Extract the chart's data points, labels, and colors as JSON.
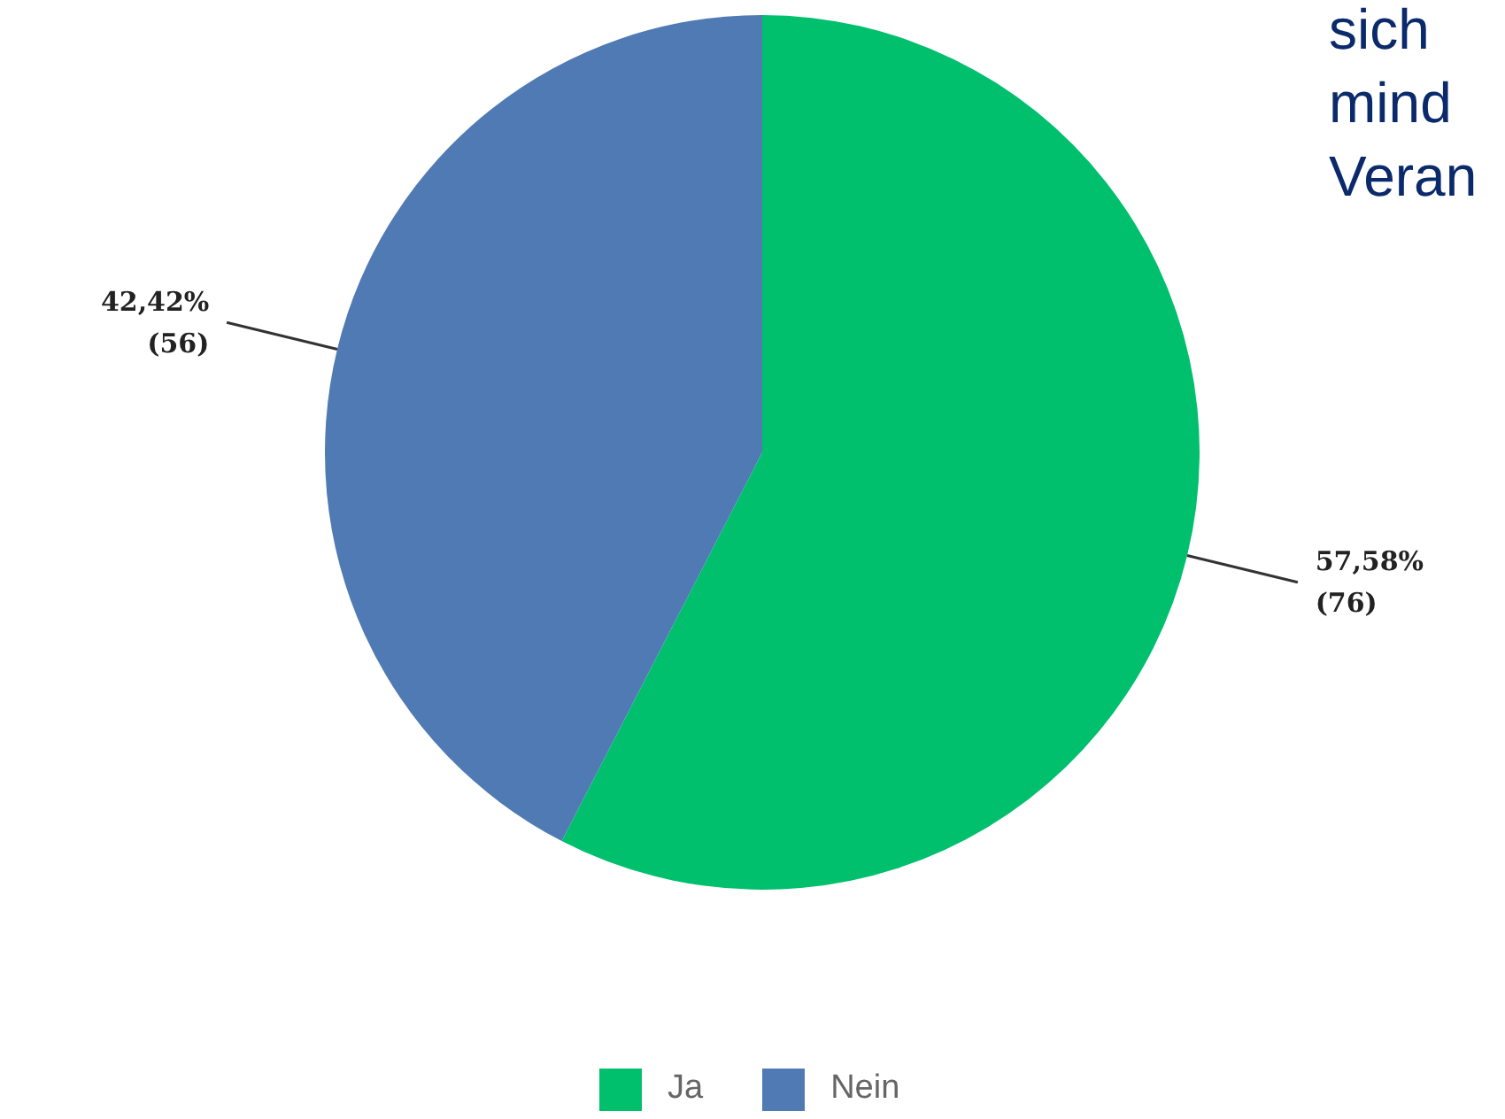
{
  "chart_data": {
    "type": "pie",
    "categories": [
      "Ja",
      "Nein"
    ],
    "values": [
      57.58,
      42.42
    ],
    "colors": [
      "#00c06e",
      "#4f7ab3"
    ],
    "value_labels": [
      "57,58%\n(76)",
      "42,42%\n(56)"
    ],
    "legend": "bottom",
    "annotations": [
      "sich\nmind\nVeran"
    ]
  }
}
